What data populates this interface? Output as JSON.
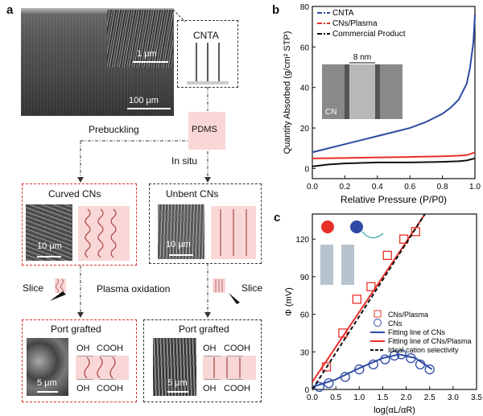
{
  "panel_labels": {
    "a": "a",
    "b": "b",
    "c": "c"
  },
  "panel_a": {
    "cnta_label": "CNTA",
    "scale_1um": "1 μm",
    "scale_100um": "100 μm",
    "prebuckling": "Prebuckling",
    "pdms": "PDMS",
    "in_situ": "In situ",
    "curved_title": "Curved CNs",
    "unbent_title": "Unbent CNs",
    "scale_10um_a": "10 μm",
    "scale_10um_b": "10 μm",
    "slice_left": "Slice",
    "slice_right": "Slice",
    "plasma_oxidation": "Plasma oxidation",
    "port_grafted_left": "Port grafted",
    "port_grafted_right": "Port grafted",
    "scale_5um_a": "5 μm",
    "scale_5um_b": "5 μm",
    "oh_left_top": "OH",
    "cooh_left_top": "COOH",
    "oh_left_bot": "OH",
    "cooh_left_bot": "COOH",
    "oh_right_top": "OH",
    "cooh_right_top": "COOH",
    "oh_right_bot": "OH",
    "cooh_right_bot": "COOH"
  },
  "colors": {
    "pink": "#f9d7d7",
    "red": "#e8302a",
    "blue": "#2e4aa3",
    "black": "#111111"
  },
  "chart_data": [
    {
      "type": "line",
      "xlabel": "Relative Pressure (P/P0)",
      "ylabel": "Quantity Absorbed (g/cm² STP)",
      "xlim": [
        0.0,
        1.0
      ],
      "ylim": [
        -5,
        80
      ],
      "x_ticks": [
        "0.0",
        "0.2",
        "0.4",
        "0.6",
        "0.8",
        "1.0"
      ],
      "y_ticks": [
        "0",
        "20",
        "40",
        "60",
        "80"
      ],
      "legend_position": "top-left",
      "inset_label": "CN",
      "inset_scale": "8 nm",
      "series": [
        {
          "name": "CNTA",
          "color": "#2e4aa3",
          "x": [
            0.0,
            0.1,
            0.2,
            0.3,
            0.4,
            0.5,
            0.6,
            0.7,
            0.8,
            0.85,
            0.9,
            0.95,
            0.97,
            0.99,
            1.0
          ],
          "y": [
            8,
            10,
            12,
            14,
            16,
            18,
            20,
            23,
            27,
            30,
            34,
            42,
            50,
            62,
            76
          ]
        },
        {
          "name": "CNs/Plasma",
          "color": "#e8302a",
          "x": [
            0.0,
            0.2,
            0.4,
            0.6,
            0.8,
            0.9,
            0.95,
            1.0
          ],
          "y": [
            5,
            5.2,
            5.5,
            5.7,
            6,
            6.3,
            6.6,
            8
          ]
        },
        {
          "name": "Commercial Product",
          "color": "#111111",
          "x": [
            0.0,
            0.1,
            0.2,
            0.4,
            0.6,
            0.8,
            0.9,
            0.95,
            1.0
          ],
          "y": [
            1,
            2,
            2.5,
            3,
            3,
            3.3,
            3.6,
            4,
            5
          ]
        }
      ]
    },
    {
      "type": "scatter",
      "xlabel": "log(αL/αR)",
      "ylabel": "Φ (mV)",
      "xlim": [
        0.0,
        3.5
      ],
      "ylim": [
        0,
        140
      ],
      "x_ticks": [
        "0.0",
        "0.5",
        "1.0",
        "1.5",
        "2.0",
        "2.5",
        "3.0",
        "3.5"
      ],
      "y_ticks": [
        "0",
        "30",
        "60",
        "90",
        "120"
      ],
      "legend_position": "bottom-center",
      "series": [
        {
          "name": "CNs/Plasma",
          "marker": "square",
          "color": "#e8302a",
          "x": [
            0.3,
            0.65,
            0.95,
            1.25,
            1.6,
            1.95,
            2.2
          ],
          "y": [
            18,
            45,
            72,
            82,
            107,
            120,
            126
          ]
        },
        {
          "name": "CNs",
          "marker": "circle",
          "color": "#2e4aa3",
          "x": [
            0.15,
            0.35,
            0.7,
            1.0,
            1.3,
            1.55,
            1.75,
            1.9,
            2.1,
            2.3,
            2.5
          ],
          "y": [
            2,
            5,
            10,
            16,
            20,
            24,
            27,
            28,
            25,
            20,
            16
          ]
        },
        {
          "name": "Fitting line of CNs",
          "type": "line",
          "color": "#2e4aa3",
          "x": [
            0.0,
            0.5,
            1.0,
            1.5,
            1.85,
            2.2,
            2.55
          ],
          "y": [
            2,
            8,
            17,
            25,
            28,
            25,
            16
          ]
        },
        {
          "name": "Fitting line of CNs/Plasma",
          "type": "line",
          "color": "#e8302a",
          "x": [
            0.0,
            2.4
          ],
          "y": [
            6,
            140
          ]
        },
        {
          "name": "Ideal cation selectivity",
          "type": "line",
          "dashed": true,
          "color": "#111111",
          "x": [
            0.0,
            2.4
          ],
          "y": [
            0,
            140
          ]
        }
      ]
    }
  ]
}
